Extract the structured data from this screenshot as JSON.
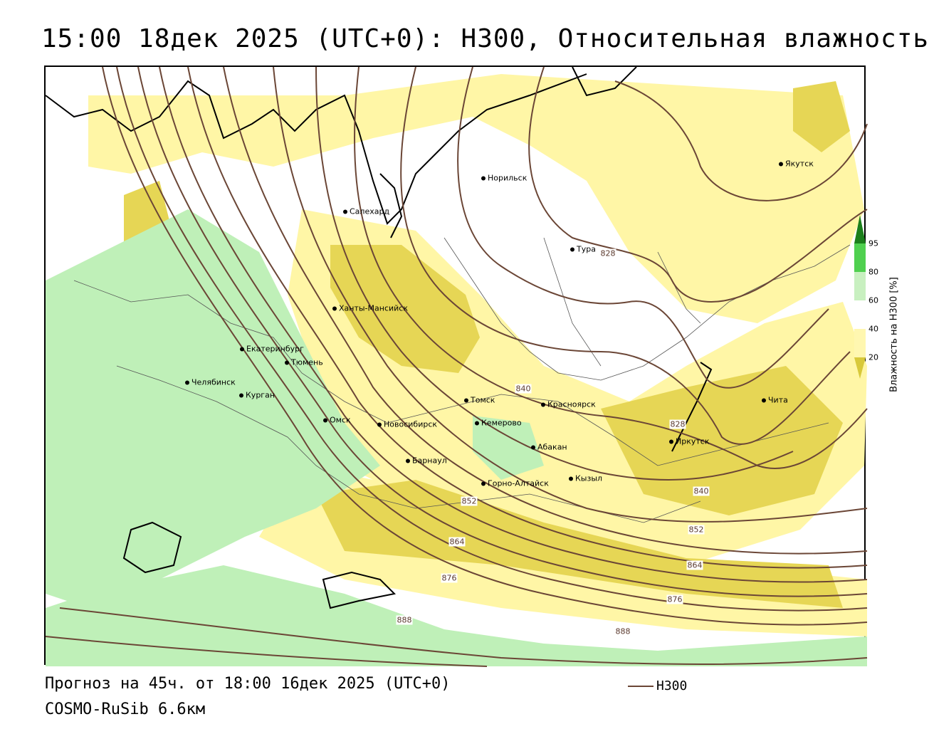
{
  "title": "15:00 18дек 2025 (UTC+0): H300, Относительная влажность",
  "footer": {
    "forecast": "Прогноз на 45ч. от 18:00 16дек 2025 (UTC+0)",
    "model": "COSMO-RuSib 6.6км",
    "legend_label": "H300"
  },
  "colorbar": {
    "title": "Влажность на H300 [%]",
    "ticks": [
      "95",
      "80",
      "60",
      "40",
      "20"
    ],
    "colors": {
      "c95": "#1b7f1b",
      "c80": "#4fd04f",
      "c60": "#c8f0c0",
      "c40": "#ffffff",
      "c20": "#fff7b0",
      "c0": "#d8c93a"
    }
  },
  "colors": {
    "isoline": "#6b4636",
    "coast": "#000000",
    "border": "#333333",
    "dry_yellow": "#fff6a6",
    "dark_yellow": "#e6d655",
    "moist_green": "#bff0b8"
  },
  "cities": [
    {
      "name": "Норильск"
    },
    {
      "name": "Якутск"
    },
    {
      "name": "Салехард"
    },
    {
      "name": "Тура"
    },
    {
      "name": "Ханты-Мансийск"
    },
    {
      "name": "Екатеринбург"
    },
    {
      "name": "Тюмень"
    },
    {
      "name": "Челябинск"
    },
    {
      "name": "Курган"
    },
    {
      "name": "Омск"
    },
    {
      "name": "Томск"
    },
    {
      "name": "Красноярск"
    },
    {
      "name": "Новосибирск"
    },
    {
      "name": "Кемерово"
    },
    {
      "name": "Чита"
    },
    {
      "name": "Иркутск"
    },
    {
      "name": "Абакан"
    },
    {
      "name": "Барнаул"
    },
    {
      "name": "Горно-Алтайск"
    },
    {
      "name": "Кызыл"
    }
  ],
  "isoline_labels": [
    "828",
    "840",
    "828",
    "840",
    "852",
    "852",
    "864",
    "864",
    "876",
    "876",
    "888",
    "888"
  ]
}
